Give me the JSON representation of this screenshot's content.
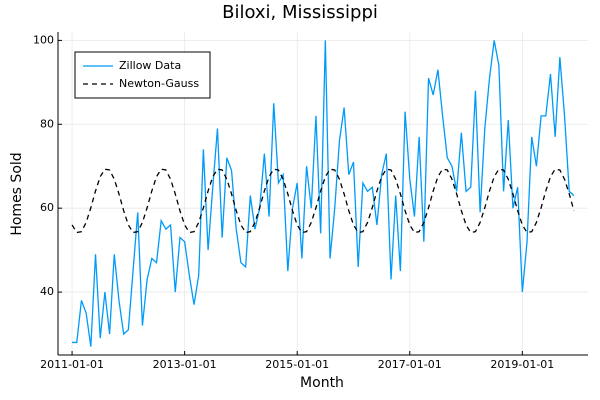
{
  "chart_data": {
    "type": "line",
    "title": "Biloxi, Mississippi",
    "x_label": "Month",
    "y_label": "Homes Sold",
    "x": [
      "2011-01-01",
      "2011-02-01",
      "2011-03-01",
      "2011-04-01",
      "2011-05-01",
      "2011-06-01",
      "2011-07-01",
      "2011-08-01",
      "2011-09-01",
      "2011-10-01",
      "2011-11-01",
      "2011-12-01",
      "2012-01-01",
      "2012-02-01",
      "2012-03-01",
      "2012-04-01",
      "2012-05-01",
      "2012-06-01",
      "2012-07-01",
      "2012-08-01",
      "2012-09-01",
      "2012-10-01",
      "2012-11-01",
      "2012-12-01",
      "2013-01-01",
      "2013-02-01",
      "2013-03-01",
      "2013-04-01",
      "2013-05-01",
      "2013-06-01",
      "2013-07-01",
      "2013-08-01",
      "2013-09-01",
      "2013-10-01",
      "2013-11-01",
      "2013-12-01",
      "2014-01-01",
      "2014-02-01",
      "2014-03-01",
      "2014-04-01",
      "2014-05-01",
      "2014-06-01",
      "2014-07-01",
      "2014-08-01",
      "2014-09-01",
      "2014-10-01",
      "2014-11-01",
      "2014-12-01",
      "2015-01-01",
      "2015-02-01",
      "2015-03-01",
      "2015-04-01",
      "2015-05-01",
      "2015-06-01",
      "2015-07-01",
      "2015-08-01",
      "2015-09-01",
      "2015-10-01",
      "2015-11-01",
      "2015-12-01",
      "2016-01-01",
      "2016-02-01",
      "2016-03-01",
      "2016-04-01",
      "2016-05-01",
      "2016-06-01",
      "2016-07-01",
      "2016-08-01",
      "2016-09-01",
      "2016-10-01",
      "2016-11-01",
      "2016-12-01",
      "2017-01-01",
      "2017-02-01",
      "2017-03-01",
      "2017-04-01",
      "2017-05-01",
      "2017-06-01",
      "2017-07-01",
      "2017-08-01",
      "2017-09-01",
      "2017-10-01",
      "2017-11-01",
      "2017-12-01",
      "2018-01-01",
      "2018-02-01",
      "2018-03-01",
      "2018-04-01",
      "2018-05-01",
      "2018-06-01",
      "2018-07-01",
      "2018-08-01",
      "2018-09-01",
      "2018-10-01",
      "2018-11-01",
      "2018-12-01",
      "2019-01-01",
      "2019-02-01",
      "2019-03-01",
      "2019-04-01",
      "2019-05-01",
      "2019-06-01",
      "2019-07-01",
      "2019-08-01",
      "2019-09-01",
      "2019-10-01",
      "2019-11-01",
      "2019-12-01"
    ],
    "series": [
      {
        "name": "Zillow Data",
        "color": "#009af9",
        "dash": false,
        "values": [
          28,
          28,
          38,
          35,
          27,
          49,
          29,
          40,
          30,
          49,
          38,
          30,
          31,
          45,
          59,
          32,
          43,
          48,
          47,
          57,
          55,
          56,
          40,
          53,
          52,
          44,
          37,
          44,
          74,
          50,
          65,
          79,
          53,
          72,
          69,
          55,
          47,
          46,
          63,
          55,
          60,
          73,
          58,
          85,
          66,
          68,
          45,
          60,
          66,
          48,
          70,
          60,
          82,
          54,
          100,
          48,
          60,
          76,
          84,
          68,
          71,
          46,
          66,
          64,
          65,
          56,
          68,
          73,
          43,
          63,
          45,
          83,
          67,
          58,
          77,
          52,
          91,
          87,
          93,
          82,
          72,
          70,
          64,
          78,
          64,
          65,
          88,
          59,
          79,
          91,
          100,
          94,
          64,
          81,
          60,
          65,
          40,
          52,
          77,
          70,
          82,
          82,
          92,
          77,
          96,
          82,
          64,
          63
        ]
      },
      {
        "name": "Newton-Gauss",
        "color": "#000000",
        "dash": true,
        "values": [
          56.0,
          54.2,
          54.4,
          56.6,
          60.1,
          64.1,
          67.5,
          69.3,
          69.1,
          66.9,
          63.4,
          59.4,
          56.0,
          54.2,
          54.4,
          56.6,
          60.1,
          64.1,
          67.5,
          69.3,
          69.1,
          66.9,
          63.4,
          59.4,
          56.0,
          54.2,
          54.4,
          56.6,
          60.1,
          64.1,
          67.5,
          69.3,
          69.1,
          66.9,
          63.4,
          59.4,
          56.0,
          54.2,
          54.4,
          56.6,
          60.1,
          64.1,
          67.5,
          69.3,
          69.1,
          66.9,
          63.4,
          59.4,
          56.0,
          54.2,
          54.4,
          56.6,
          60.1,
          64.1,
          67.5,
          69.3,
          69.1,
          66.9,
          63.4,
          59.4,
          56.0,
          54.2,
          54.4,
          56.6,
          60.1,
          64.1,
          67.5,
          69.3,
          69.1,
          66.9,
          63.4,
          59.4,
          56.0,
          54.2,
          54.4,
          56.6,
          60.1,
          64.1,
          67.5,
          69.3,
          69.1,
          66.9,
          63.4,
          59.4,
          56.0,
          54.2,
          54.4,
          56.6,
          60.1,
          64.1,
          67.5,
          69.3,
          69.1,
          66.9,
          63.4,
          59.4,
          56.0,
          54.2,
          54.4,
          56.6,
          60.1,
          64.1,
          67.5,
          69.3,
          69.1,
          66.9,
          63.4,
          59.4
        ]
      }
    ],
    "xlim": [
      "2010-10-01",
      "2020-03-01"
    ],
    "xticks": [
      "2011-01-01",
      "2013-01-01",
      "2015-01-01",
      "2017-01-01",
      "2019-01-01"
    ],
    "ylim": [
      25,
      102
    ],
    "yticks": [
      40,
      60,
      80,
      100
    ],
    "grid": true,
    "legend": "top-left"
  }
}
